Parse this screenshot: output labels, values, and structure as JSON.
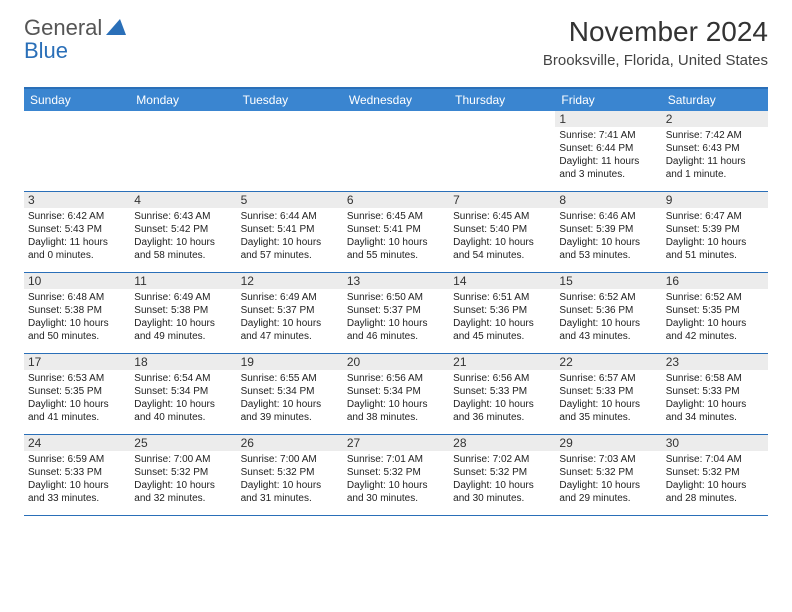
{
  "brand": {
    "part1": "General",
    "part2": "Blue"
  },
  "title": "November 2024",
  "location": "Brooksville, Florida, United States",
  "colors": {
    "header_bar": "#3a85d0",
    "rule": "#2a6fb8",
    "daynum_bg": "#ececec",
    "text": "#333333"
  },
  "daysOfWeek": [
    "Sunday",
    "Monday",
    "Tuesday",
    "Wednesday",
    "Thursday",
    "Friday",
    "Saturday"
  ],
  "weeks": [
    [
      {
        "n": "",
        "sr": "",
        "ss": "",
        "dl": ""
      },
      {
        "n": "",
        "sr": "",
        "ss": "",
        "dl": ""
      },
      {
        "n": "",
        "sr": "",
        "ss": "",
        "dl": ""
      },
      {
        "n": "",
        "sr": "",
        "ss": "",
        "dl": ""
      },
      {
        "n": "",
        "sr": "",
        "ss": "",
        "dl": ""
      },
      {
        "n": "1",
        "sr": "Sunrise: 7:41 AM",
        "ss": "Sunset: 6:44 PM",
        "dl": "Daylight: 11 hours and 3 minutes."
      },
      {
        "n": "2",
        "sr": "Sunrise: 7:42 AM",
        "ss": "Sunset: 6:43 PM",
        "dl": "Daylight: 11 hours and 1 minute."
      }
    ],
    [
      {
        "n": "3",
        "sr": "Sunrise: 6:42 AM",
        "ss": "Sunset: 5:43 PM",
        "dl": "Daylight: 11 hours and 0 minutes."
      },
      {
        "n": "4",
        "sr": "Sunrise: 6:43 AM",
        "ss": "Sunset: 5:42 PM",
        "dl": "Daylight: 10 hours and 58 minutes."
      },
      {
        "n": "5",
        "sr": "Sunrise: 6:44 AM",
        "ss": "Sunset: 5:41 PM",
        "dl": "Daylight: 10 hours and 57 minutes."
      },
      {
        "n": "6",
        "sr": "Sunrise: 6:45 AM",
        "ss": "Sunset: 5:41 PM",
        "dl": "Daylight: 10 hours and 55 minutes."
      },
      {
        "n": "7",
        "sr": "Sunrise: 6:45 AM",
        "ss": "Sunset: 5:40 PM",
        "dl": "Daylight: 10 hours and 54 minutes."
      },
      {
        "n": "8",
        "sr": "Sunrise: 6:46 AM",
        "ss": "Sunset: 5:39 PM",
        "dl": "Daylight: 10 hours and 53 minutes."
      },
      {
        "n": "9",
        "sr": "Sunrise: 6:47 AM",
        "ss": "Sunset: 5:39 PM",
        "dl": "Daylight: 10 hours and 51 minutes."
      }
    ],
    [
      {
        "n": "10",
        "sr": "Sunrise: 6:48 AM",
        "ss": "Sunset: 5:38 PM",
        "dl": "Daylight: 10 hours and 50 minutes."
      },
      {
        "n": "11",
        "sr": "Sunrise: 6:49 AM",
        "ss": "Sunset: 5:38 PM",
        "dl": "Daylight: 10 hours and 49 minutes."
      },
      {
        "n": "12",
        "sr": "Sunrise: 6:49 AM",
        "ss": "Sunset: 5:37 PM",
        "dl": "Daylight: 10 hours and 47 minutes."
      },
      {
        "n": "13",
        "sr": "Sunrise: 6:50 AM",
        "ss": "Sunset: 5:37 PM",
        "dl": "Daylight: 10 hours and 46 minutes."
      },
      {
        "n": "14",
        "sr": "Sunrise: 6:51 AM",
        "ss": "Sunset: 5:36 PM",
        "dl": "Daylight: 10 hours and 45 minutes."
      },
      {
        "n": "15",
        "sr": "Sunrise: 6:52 AM",
        "ss": "Sunset: 5:36 PM",
        "dl": "Daylight: 10 hours and 43 minutes."
      },
      {
        "n": "16",
        "sr": "Sunrise: 6:52 AM",
        "ss": "Sunset: 5:35 PM",
        "dl": "Daylight: 10 hours and 42 minutes."
      }
    ],
    [
      {
        "n": "17",
        "sr": "Sunrise: 6:53 AM",
        "ss": "Sunset: 5:35 PM",
        "dl": "Daylight: 10 hours and 41 minutes."
      },
      {
        "n": "18",
        "sr": "Sunrise: 6:54 AM",
        "ss": "Sunset: 5:34 PM",
        "dl": "Daylight: 10 hours and 40 minutes."
      },
      {
        "n": "19",
        "sr": "Sunrise: 6:55 AM",
        "ss": "Sunset: 5:34 PM",
        "dl": "Daylight: 10 hours and 39 minutes."
      },
      {
        "n": "20",
        "sr": "Sunrise: 6:56 AM",
        "ss": "Sunset: 5:34 PM",
        "dl": "Daylight: 10 hours and 38 minutes."
      },
      {
        "n": "21",
        "sr": "Sunrise: 6:56 AM",
        "ss": "Sunset: 5:33 PM",
        "dl": "Daylight: 10 hours and 36 minutes."
      },
      {
        "n": "22",
        "sr": "Sunrise: 6:57 AM",
        "ss": "Sunset: 5:33 PM",
        "dl": "Daylight: 10 hours and 35 minutes."
      },
      {
        "n": "23",
        "sr": "Sunrise: 6:58 AM",
        "ss": "Sunset: 5:33 PM",
        "dl": "Daylight: 10 hours and 34 minutes."
      }
    ],
    [
      {
        "n": "24",
        "sr": "Sunrise: 6:59 AM",
        "ss": "Sunset: 5:33 PM",
        "dl": "Daylight: 10 hours and 33 minutes."
      },
      {
        "n": "25",
        "sr": "Sunrise: 7:00 AM",
        "ss": "Sunset: 5:32 PM",
        "dl": "Daylight: 10 hours and 32 minutes."
      },
      {
        "n": "26",
        "sr": "Sunrise: 7:00 AM",
        "ss": "Sunset: 5:32 PM",
        "dl": "Daylight: 10 hours and 31 minutes."
      },
      {
        "n": "27",
        "sr": "Sunrise: 7:01 AM",
        "ss": "Sunset: 5:32 PM",
        "dl": "Daylight: 10 hours and 30 minutes."
      },
      {
        "n": "28",
        "sr": "Sunrise: 7:02 AM",
        "ss": "Sunset: 5:32 PM",
        "dl": "Daylight: 10 hours and 30 minutes."
      },
      {
        "n": "29",
        "sr": "Sunrise: 7:03 AM",
        "ss": "Sunset: 5:32 PM",
        "dl": "Daylight: 10 hours and 29 minutes."
      },
      {
        "n": "30",
        "sr": "Sunrise: 7:04 AM",
        "ss": "Sunset: 5:32 PM",
        "dl": "Daylight: 10 hours and 28 minutes."
      }
    ]
  ]
}
